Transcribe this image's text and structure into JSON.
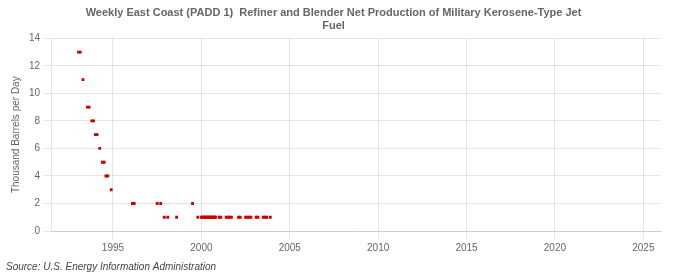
{
  "chart_data": {
    "type": "scatter",
    "title": [
      "Weekly East Coast (PADD 1)  Refiner and Blender Net Production of Military Kerosene-Type Jet",
      "Fuel"
    ],
    "ylabel": "Thousand Barrels per Day",
    "annotation": "Source: U.S. Energy Information Administration",
    "color": "#cc0000",
    "marker": "square",
    "grid": true,
    "xlim": [
      1991.5,
      2026
    ],
    "ylim": [
      0,
      14
    ],
    "xticks": [
      1995,
      2000,
      2005,
      2010,
      2015,
      2020,
      2025
    ],
    "yticks": [
      0,
      2,
      4,
      6,
      8,
      10,
      12,
      14
    ],
    "x": [
      1993.05,
      1993.15,
      1993.3,
      1993.55,
      1993.65,
      1993.8,
      1993.9,
      1994.0,
      1994.1,
      1994.25,
      1994.4,
      1994.5,
      1994.6,
      1994.7,
      1994.9,
      1996.1,
      1996.2,
      1997.5,
      1997.7,
      1997.9,
      1998.1,
      1998.6,
      1999.5,
      1999.8,
      2000.0,
      2000.05,
      2000.1,
      2000.15,
      2000.2,
      2000.25,
      2000.3,
      2000.35,
      2000.4,
      2000.45,
      2000.5,
      2000.55,
      2000.6,
      2000.65,
      2000.7,
      2000.75,
      2000.8,
      2001.0,
      2001.1,
      2001.4,
      2001.5,
      2001.6,
      2001.7,
      2002.1,
      2002.2,
      2002.5,
      2002.6,
      2002.7,
      2002.8,
      2003.1,
      2003.2,
      2003.5,
      2003.6,
      2003.7,
      2003.9
    ],
    "values": [
      13,
      13,
      11,
      9,
      9,
      8,
      8,
      7,
      7,
      6,
      5,
      5,
      4,
      4,
      3,
      2,
      2,
      2,
      2,
      1,
      1,
      1,
      2,
      1,
      1,
      1,
      1,
      1,
      1,
      1,
      1,
      1,
      1,
      1,
      1,
      1,
      1,
      1,
      1,
      1,
      1,
      1,
      1,
      1,
      1,
      1,
      1,
      1,
      1,
      1,
      1,
      1,
      1,
      1,
      1,
      1,
      1,
      1,
      1
    ]
  }
}
